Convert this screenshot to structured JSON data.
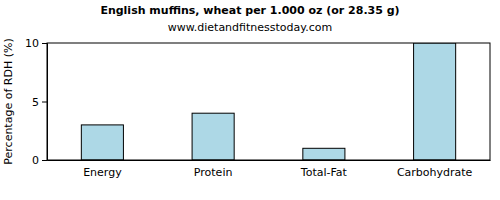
{
  "chart_data": {
    "type": "bar",
    "title": "English muffins, wheat per 1.000 oz (or 28.35 g)",
    "subtitle": "www.dietandfitnesstoday.com",
    "y_label": "Percentage of RDH (%)",
    "categories": [
      "Energy",
      "Protein",
      "Total-Fat",
      "Carbohydrate"
    ],
    "values": [
      3,
      4,
      1,
      10
    ],
    "color": "#add8e6",
    "ylim": [
      0,
      10
    ],
    "yticks": [
      0,
      5,
      10
    ],
    "grid": false
  }
}
